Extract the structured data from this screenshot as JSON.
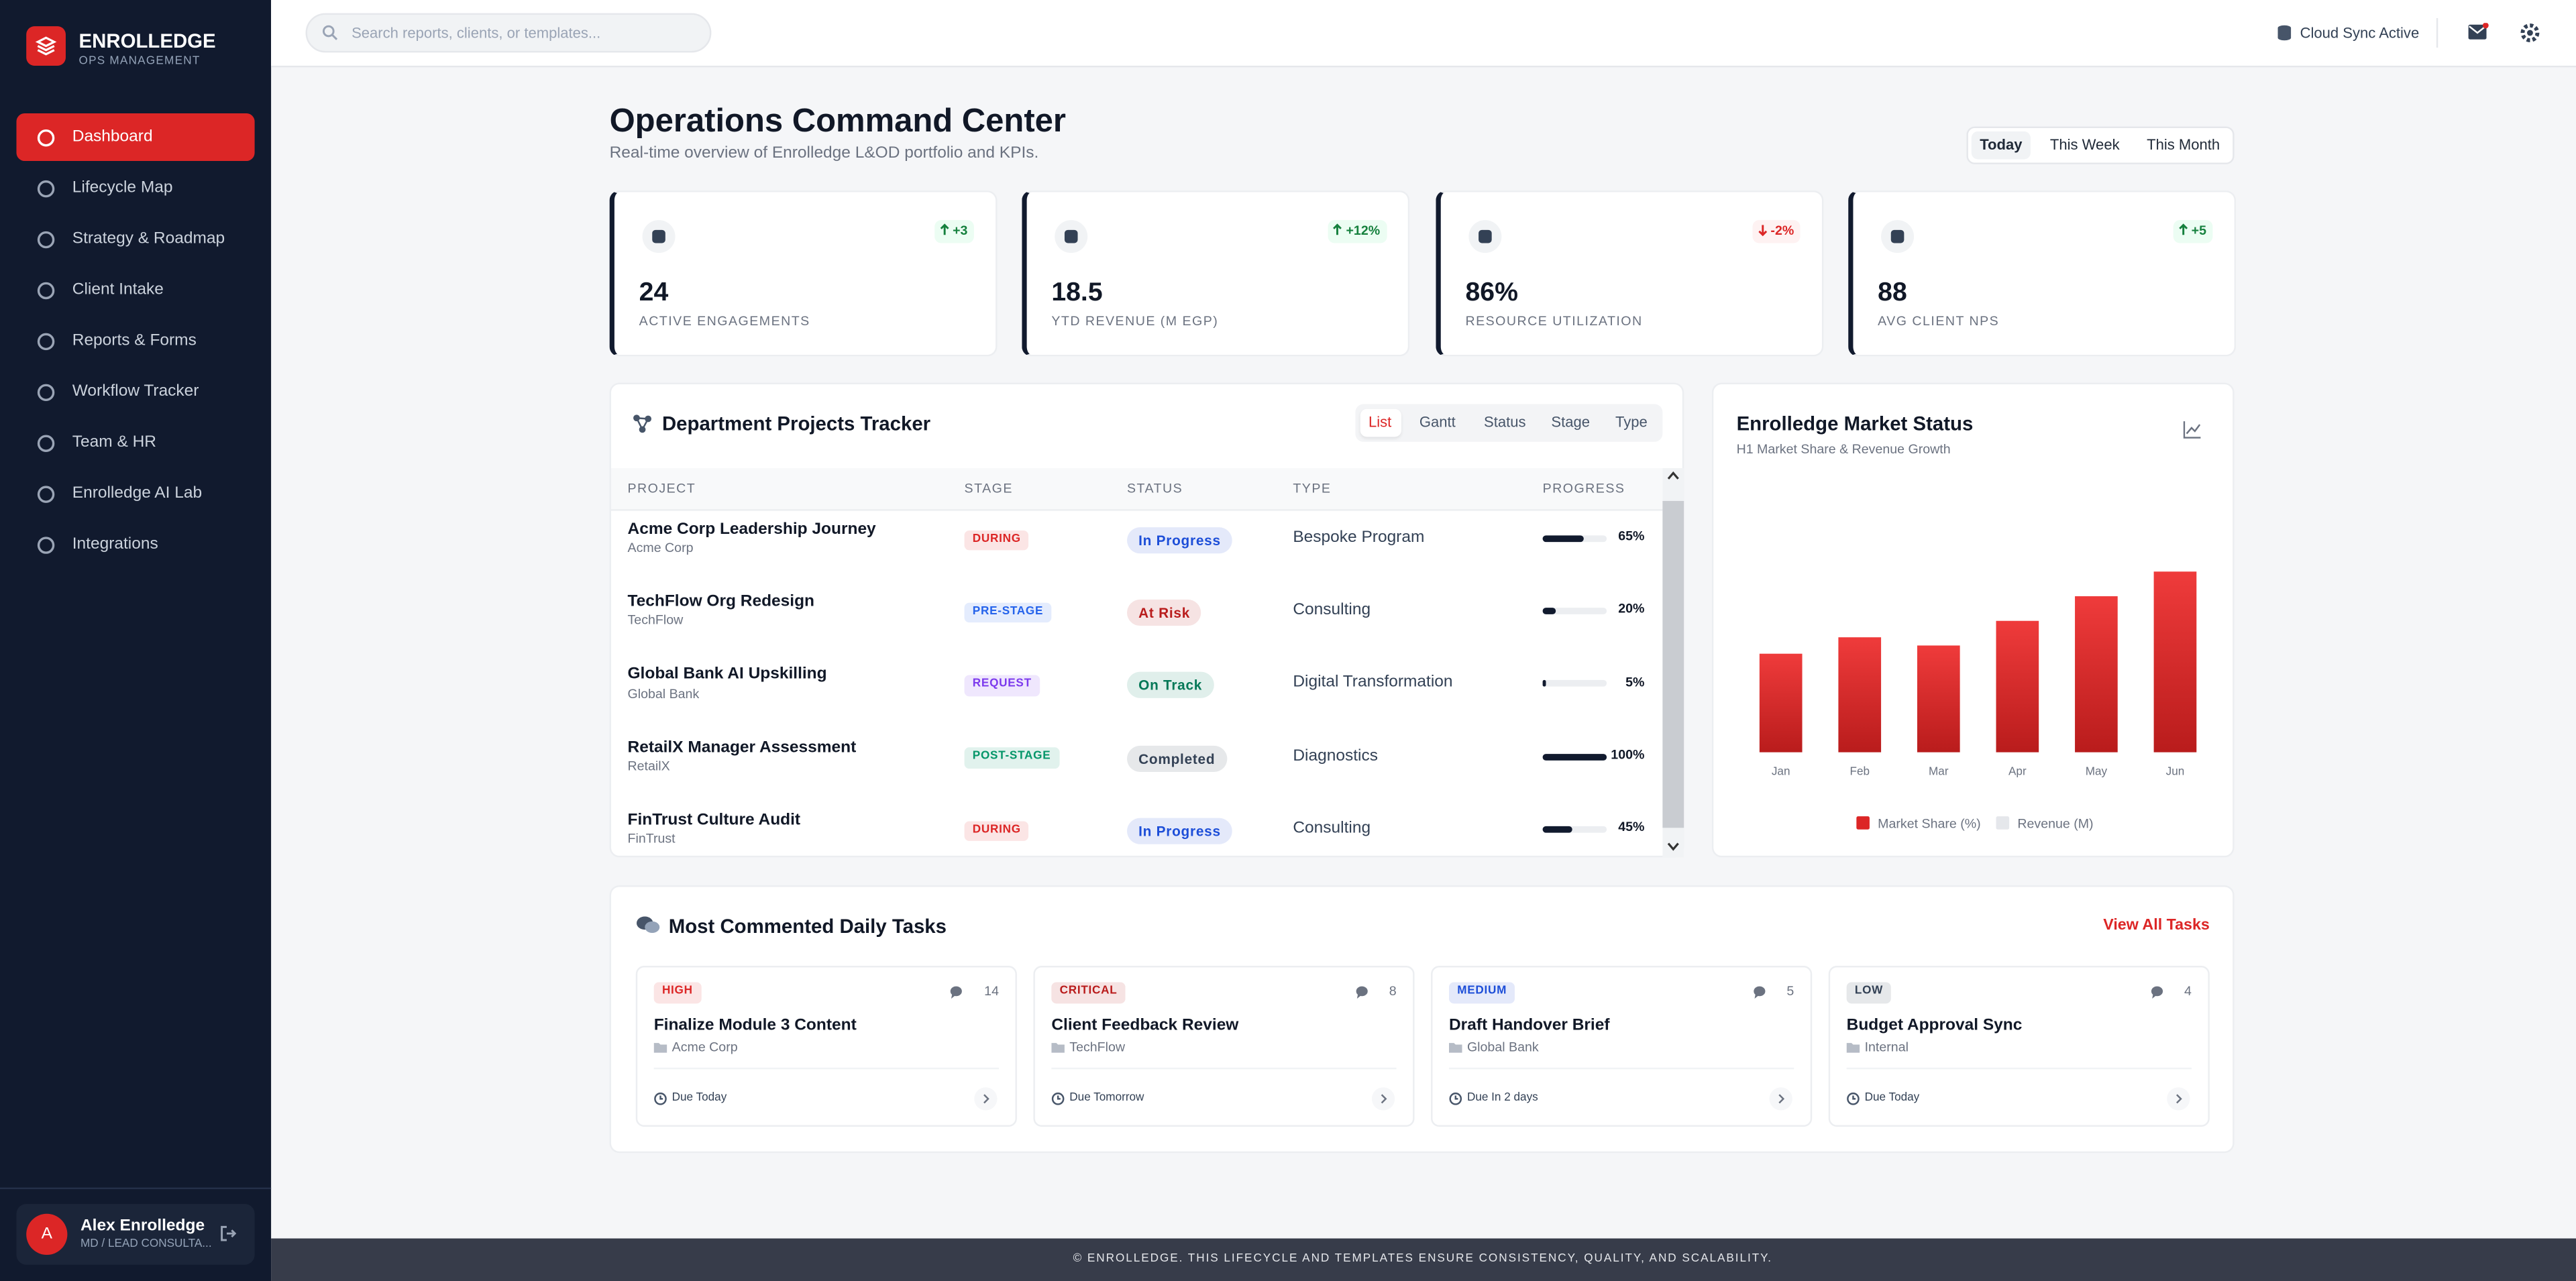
{
  "brand": {
    "name": "ENROLLEDGE",
    "sub": "OPS MANAGEMENT"
  },
  "nav": [
    "Dashboard",
    "Lifecycle Map",
    "Strategy & Roadmap",
    "Client Intake",
    "Reports & Forms",
    "Workflow Tracker",
    "Team & HR",
    "Enrolledge AI Lab",
    "Integrations"
  ],
  "user": {
    "initial": "A",
    "name": "Alex Enrolledge",
    "role": "MD / LEAD CONSULTA..."
  },
  "search_placeholder": "Search reports, clients, or templates...",
  "sync": "Cloud Sync Active",
  "header": {
    "title": "Operations Command Center",
    "subtitle": "Real-time overview of Enrolledge L&OD portfolio and KPIs."
  },
  "range_tabs": [
    "Today",
    "This Week",
    "This Month"
  ],
  "kpis": [
    {
      "delta": "+3",
      "trend": "up",
      "value": "24",
      "label": "ACTIVE ENGAGEMENTS"
    },
    {
      "delta": "+12%",
      "trend": "up",
      "value": "18.5",
      "label": "YTD REVENUE (M EGP)"
    },
    {
      "delta": "-2%",
      "trend": "down",
      "value": "86%",
      "label": "RESOURCE UTILIZATION"
    },
    {
      "delta": "+5",
      "trend": "up",
      "value": "88",
      "label": "AVG CLIENT NPS"
    }
  ],
  "tracker": {
    "title": "Department Projects Tracker",
    "tabs": [
      "List",
      "Gantt",
      "Status",
      "Stage",
      "Type"
    ],
    "columns": [
      "PROJECT",
      "STAGE",
      "STATUS",
      "TYPE",
      "PROGRESS"
    ],
    "rows": [
      {
        "project": "Acme Corp Leadership Journey",
        "client": "Acme Corp",
        "stage": "DURING",
        "stage_color": "#dc2626",
        "status": "In Progress",
        "status_color": "#1d4ed8",
        "type": "Bespoke Program",
        "progress": 65,
        "progress_label": "65%"
      },
      {
        "project": "TechFlow Org Redesign",
        "client": "TechFlow",
        "stage": "PRE-STAGE",
        "stage_color": "#2563eb",
        "status": "At Risk",
        "status_color": "#b91c1c",
        "type": "Consulting",
        "progress": 20,
        "progress_label": "20%"
      },
      {
        "project": "Global Bank AI Upskilling",
        "client": "Global Bank",
        "stage": "REQUEST",
        "stage_color": "#7c3aed",
        "status": "On Track",
        "status_color": "#047857",
        "type": "Digital Transformation",
        "progress": 5,
        "progress_label": "5%"
      },
      {
        "project": "RetailX Manager Assessment",
        "client": "RetailX",
        "stage": "POST-STAGE",
        "stage_color": "#059669",
        "status": "Completed",
        "status_color": "#334155",
        "type": "Diagnostics",
        "progress": 100,
        "progress_label": "100%"
      },
      {
        "project": "FinTrust Culture Audit",
        "client": "FinTrust",
        "stage": "DURING",
        "stage_color": "#dc2626",
        "status": "In Progress",
        "status_color": "#1d4ed8",
        "type": "Consulting",
        "progress": 45,
        "progress_label": "45%"
      }
    ]
  },
  "chart_data": {
    "type": "bar",
    "title": "Enrolledge Market Status",
    "subtitle": "H1 Market Share & Revenue Growth",
    "categories": [
      "Jan",
      "Feb",
      "Mar",
      "Apr",
      "May",
      "Jun"
    ],
    "series": [
      {
        "name": "Market Share (%)",
        "color": "#dc2626",
        "values": [
          12,
          14,
          13,
          16,
          19,
          22
        ]
      },
      {
        "name": "Revenue (M)",
        "color": "#e5e7eb",
        "values": [
          null,
          null,
          null,
          null,
          null,
          null
        ]
      }
    ],
    "ylim": [
      0,
      25
    ]
  },
  "tasks": {
    "title": "Most Commented Daily Tasks",
    "link": "View All Tasks",
    "items": [
      {
        "priority": "HIGH",
        "priority_color": "#dc2626",
        "comments": "14",
        "title": "Finalize Module 3 Content",
        "client": "Acme Corp",
        "due": "Due Today"
      },
      {
        "priority": "CRITICAL",
        "priority_color": "#b91c1c",
        "comments": "8",
        "title": "Client Feedback Review",
        "client": "TechFlow",
        "due": "Due Tomorrow"
      },
      {
        "priority": "MEDIUM",
        "priority_color": "#1d4ed8",
        "comments": "5",
        "title": "Draft Handover Brief",
        "client": "Global Bank",
        "due": "Due In 2 days"
      },
      {
        "priority": "LOW",
        "priority_color": "#334155",
        "comments": "4",
        "title": "Budget Approval Sync",
        "client": "Internal",
        "due": "Due Today"
      }
    ]
  },
  "footer": "© ENROLLEDGE. THIS LIFECYCLE AND TEMPLATES ENSURE CONSISTENCY, QUALITY, AND SCALABILITY."
}
